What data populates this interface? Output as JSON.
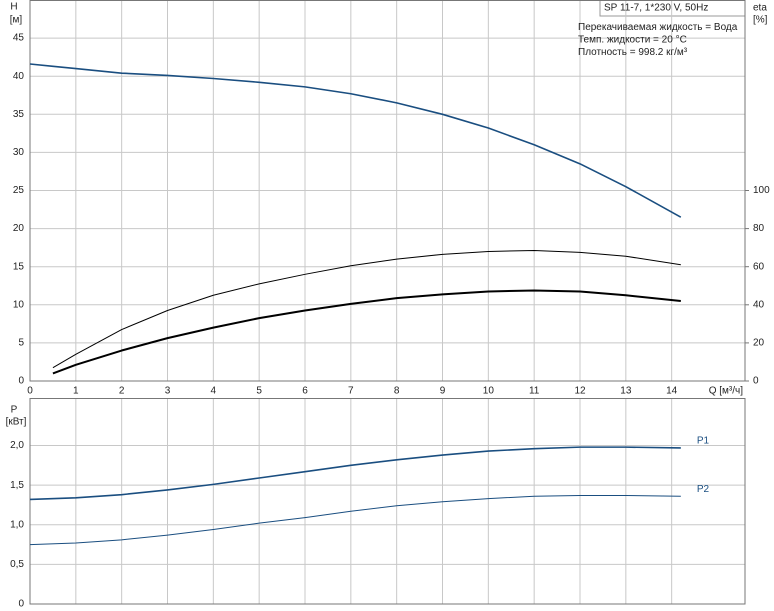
{
  "chart_data": [
    {
      "type": "line",
      "y_label": "H",
      "y_unit": "[м]",
      "y2_label": "eta",
      "y2_unit": "[%]",
      "x_label": "Q [м³/ч]",
      "annotations": [
        "SP 11-7, 1*230 V, 50Hz",
        "Перекачиваемая жидкость = Вода",
        "Темп. жидкости = 20 °C",
        "Плотность = 998.2 кг/м³"
      ],
      "x": [
        0,
        0.5,
        1,
        2,
        3,
        4,
        5,
        6,
        7,
        8,
        9,
        10,
        11,
        12,
        13,
        14.2
      ],
      "series": [
        {
          "color": "#1a4e80",
          "values": [
            41.6,
            41.3,
            41.0,
            40.4,
            40.1,
            39.7,
            39.2,
            38.6,
            37.7,
            36.5,
            35.0,
            33.2,
            31.0,
            28.5,
            25.5,
            21.5
          ]
        },
        {
          "color": "#000000",
          "axis": "y2",
          "values": [
            null,
            7,
            14,
            27,
            37,
            45,
            51,
            56,
            60.5,
            64,
            66.5,
            68,
            68.5,
            67.5,
            65.5,
            61
          ]
        },
        {
          "color": "#000000",
          "axis": "y2",
          "values": [
            null,
            4,
            8.5,
            16,
            22.5,
            28,
            33,
            37,
            40.5,
            43.5,
            45.5,
            47,
            47.5,
            47,
            45,
            42
          ]
        }
      ],
      "xlim": [
        0,
        15.6
      ],
      "xticks": [
        0,
        1,
        2,
        3,
        4,
        5,
        6,
        7,
        8,
        9,
        10,
        11,
        12,
        13,
        14
      ],
      "ylim": [
        0,
        50
      ],
      "yticks": [
        0,
        5,
        10,
        15,
        20,
        25,
        30,
        35,
        40,
        45
      ],
      "y2lim": [
        0,
        200
      ],
      "y2ticks": [
        0,
        20,
        40,
        60,
        80,
        100
      ],
      "grid": true
    },
    {
      "type": "line",
      "y_label": "P",
      "y_unit": "[кВт]",
      "x": [
        0,
        1,
        2,
        3,
        4,
        5,
        6,
        7,
        8,
        9,
        10,
        11,
        12,
        13,
        14.2
      ],
      "series": [
        {
          "name": "P1",
          "color": "#1a4e80",
          "values": [
            1.32,
            1.34,
            1.38,
            1.44,
            1.51,
            1.59,
            1.67,
            1.75,
            1.82,
            1.88,
            1.93,
            1.96,
            1.98,
            1.98,
            1.97
          ]
        },
        {
          "name": "P2",
          "color": "#1a4e80",
          "values": [
            0.75,
            0.77,
            0.81,
            0.87,
            0.94,
            1.02,
            1.09,
            1.17,
            1.24,
            1.29,
            1.33,
            1.36,
            1.37,
            1.37,
            1.36
          ]
        }
      ],
      "xlim": [
        0,
        15.6
      ],
      "xticks": [
        0,
        1,
        2,
        3,
        4,
        5,
        6,
        7,
        8,
        9,
        10,
        11,
        12,
        13,
        14
      ],
      "ylim": [
        0,
        2.6
      ],
      "yticks": [
        0,
        {
          "value": 0.5,
          "label": "0,5"
        },
        {
          "value": 1,
          "label": "1,0"
        },
        {
          "value": 1.5,
          "label": "1,5"
        },
        {
          "value": 2,
          "label": "2,0"
        }
      ],
      "grid": true
    }
  ]
}
